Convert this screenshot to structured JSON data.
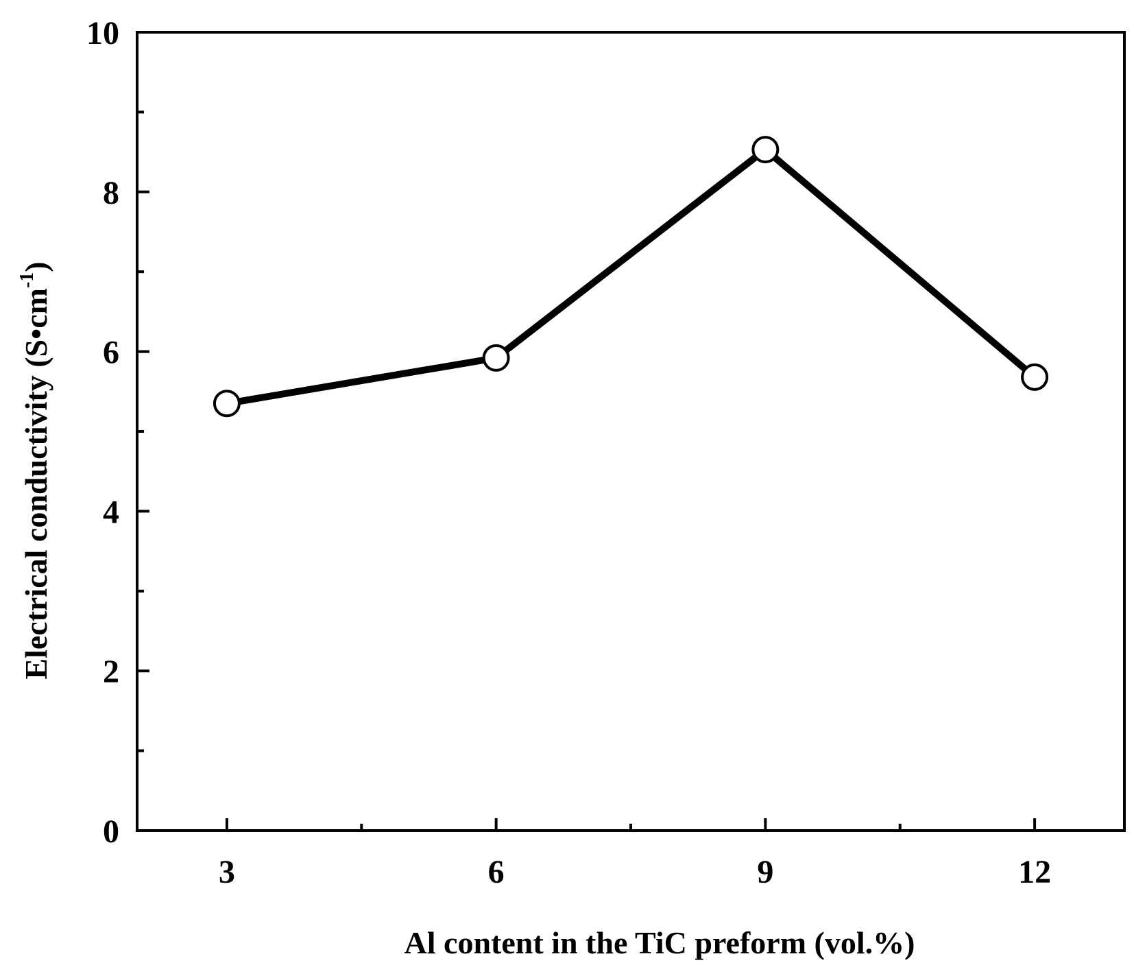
{
  "chart_data": {
    "type": "line",
    "xlabel": "Al content in the TiC preform (vol.%)",
    "ylabel_main": "Electrical conductivity (S•cm",
    "ylabel_sup": "-1",
    "ylabel_close": ")",
    "xlim": [
      2,
      13
    ],
    "ylim": [
      0,
      10
    ],
    "x_ticks": [
      3,
      6,
      9,
      12
    ],
    "x_minor_ticks": [
      4.5,
      7.5,
      10.5
    ],
    "y_ticks": [
      0,
      2,
      4,
      6,
      8,
      10
    ],
    "y_minor_ticks": [
      1,
      3,
      5,
      7,
      9
    ],
    "grid": false,
    "series": [
      {
        "x": [
          3,
          6,
          9,
          12
        ],
        "values": [
          5.35,
          5.92,
          8.53,
          5.68
        ],
        "color": "#000000",
        "marker": "open-circle"
      }
    ]
  }
}
